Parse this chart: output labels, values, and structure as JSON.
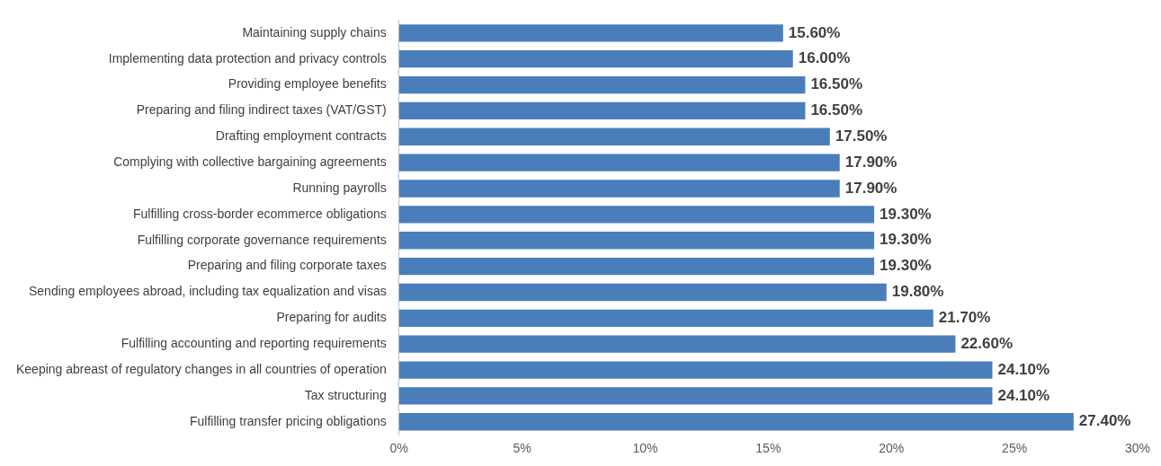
{
  "chart_data": {
    "type": "bar",
    "orientation": "horizontal",
    "categories": [
      "Maintaining supply chains",
      "Implementing data protection and privacy controls",
      "Providing employee benefits",
      "Preparing and filing indirect taxes (VAT/GST)",
      "Drafting employment contracts",
      "Complying with collective bargaining agreements",
      "Running payrolls",
      "Fulfilling cross-border ecommerce obligations",
      "Fulfilling corporate governance requirements",
      "Preparing and filing corporate taxes",
      "Sending employees abroad, including tax equalization and visas",
      "Preparing for audits",
      "Fulfilling accounting and reporting requirements",
      "Keeping abreast of regulatory changes in all countries of operation",
      "Tax structuring",
      "Fulfilling transfer pricing obligations"
    ],
    "values": [
      15.6,
      16.0,
      16.5,
      16.5,
      17.5,
      17.9,
      17.9,
      19.3,
      19.3,
      19.3,
      19.8,
      21.7,
      22.6,
      24.1,
      24.1,
      27.4
    ],
    "value_labels": [
      "15.60%",
      "16.00%",
      "16.50%",
      "16.50%",
      "17.50%",
      "17.90%",
      "17.90%",
      "19.30%",
      "19.30%",
      "19.30%",
      "19.80%",
      "21.70%",
      "22.60%",
      "24.10%",
      "24.10%",
      "27.40%"
    ],
    "color": "#4a7ebb",
    "xlim": [
      0,
      30
    ],
    "xticks": [
      {
        "value": 0,
        "label": "0%"
      },
      {
        "value": 5,
        "label": "5%"
      },
      {
        "value": 10,
        "label": "10%"
      },
      {
        "value": 15,
        "label": "15%"
      },
      {
        "value": 20,
        "label": "20%"
      },
      {
        "value": 25,
        "label": "25%"
      },
      {
        "value": 30,
        "label": "30%"
      }
    ],
    "grid": false,
    "legend": false
  }
}
